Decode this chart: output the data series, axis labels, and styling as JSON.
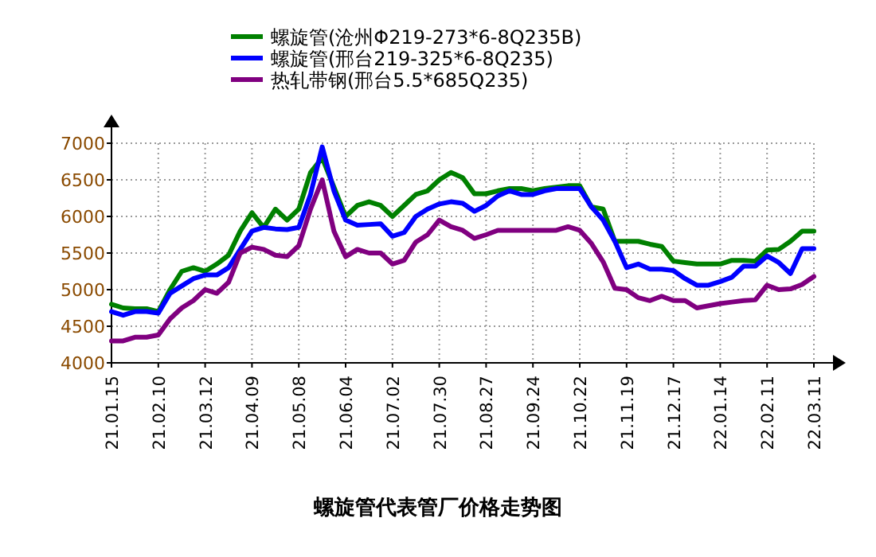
{
  "chart_data": {
    "type": "line",
    "title": "螺旋管代表管厂价格走势图",
    "categories": [
      "21.01.15",
      null,
      null,
      null,
      "21.02.10",
      null,
      null,
      null,
      "21.03.12",
      null,
      null,
      null,
      "21.04.09",
      null,
      null,
      null,
      "21.05.08",
      null,
      null,
      null,
      "21.06.04",
      null,
      null,
      null,
      "21.07.02",
      null,
      null,
      null,
      "21.07.30",
      null,
      null,
      null,
      "21.08.27",
      null,
      null,
      null,
      "21.09.24",
      null,
      null,
      null,
      "21.10.22",
      null,
      null,
      null,
      "21.11.19",
      null,
      null,
      null,
      "21.12.17",
      null,
      null,
      null,
      "22.01.14",
      null,
      null,
      null,
      "22.02.11",
      null,
      null,
      null,
      "22.03.11"
    ],
    "series": [
      {
        "name": "螺旋管(沧州Φ219-273*6-8Q235B)",
        "color": "#008000",
        "values": [
          4800,
          4750,
          4740,
          4740,
          4700,
          5000,
          5250,
          5300,
          5250,
          5350,
          5470,
          5800,
          6050,
          5850,
          6100,
          5950,
          6100,
          6600,
          6800,
          6400,
          6000,
          6150,
          6200,
          6150,
          6000,
          6150,
          6300,
          6350,
          6500,
          6600,
          6530,
          6310,
          6310,
          6350,
          6380,
          6380,
          6350,
          6380,
          6400,
          6420,
          6420,
          6130,
          6100,
          5660,
          5660,
          5660,
          5620,
          5590,
          5390,
          5370,
          5350,
          5350,
          5350,
          5400,
          5400,
          5390,
          5540,
          5550,
          5660,
          5800,
          5800
        ]
      },
      {
        "name": "螺旋管(邢台219-325*6-8Q235)",
        "color": "#0000ff",
        "values": [
          4700,
          4650,
          4700,
          4700,
          4680,
          4950,
          5050,
          5150,
          5200,
          5200,
          5300,
          5550,
          5800,
          5850,
          5830,
          5820,
          5850,
          6300,
          6950,
          6350,
          5950,
          5880,
          5890,
          5900,
          5730,
          5780,
          6000,
          6100,
          6170,
          6200,
          6180,
          6070,
          6150,
          6280,
          6350,
          6300,
          6300,
          6350,
          6380,
          6380,
          6380,
          6130,
          5950,
          5660,
          5300,
          5350,
          5280,
          5280,
          5260,
          5150,
          5060,
          5060,
          5110,
          5170,
          5320,
          5320,
          5460,
          5370,
          5220,
          5560,
          5560
        ]
      },
      {
        "name": "热轧带钢(邢台5.5*685Q235)",
        "color": "#800080",
        "values": [
          4300,
          4300,
          4350,
          4350,
          4380,
          4600,
          4750,
          4850,
          5000,
          4950,
          5100,
          5500,
          5580,
          5550,
          5470,
          5450,
          5600,
          6100,
          6500,
          5800,
          5450,
          5550,
          5500,
          5500,
          5350,
          5400,
          5650,
          5750,
          5950,
          5860,
          5810,
          5700,
          5750,
          5810,
          5810,
          5810,
          5810,
          5810,
          5810,
          5860,
          5810,
          5630,
          5380,
          5020,
          5000,
          4890,
          4850,
          4910,
          4850,
          4850,
          4750,
          4780,
          4810,
          4830,
          4850,
          4860,
          5060,
          5000,
          5010,
          5070,
          5180
        ]
      }
    ],
    "ylim": [
      4000,
      7000
    ],
    "yticks": [
      4000,
      4500,
      5000,
      5500,
      6000,
      6500,
      7000
    ],
    "grid": true,
    "legend": "top",
    "line_style": "solid",
    "marker": "none"
  }
}
